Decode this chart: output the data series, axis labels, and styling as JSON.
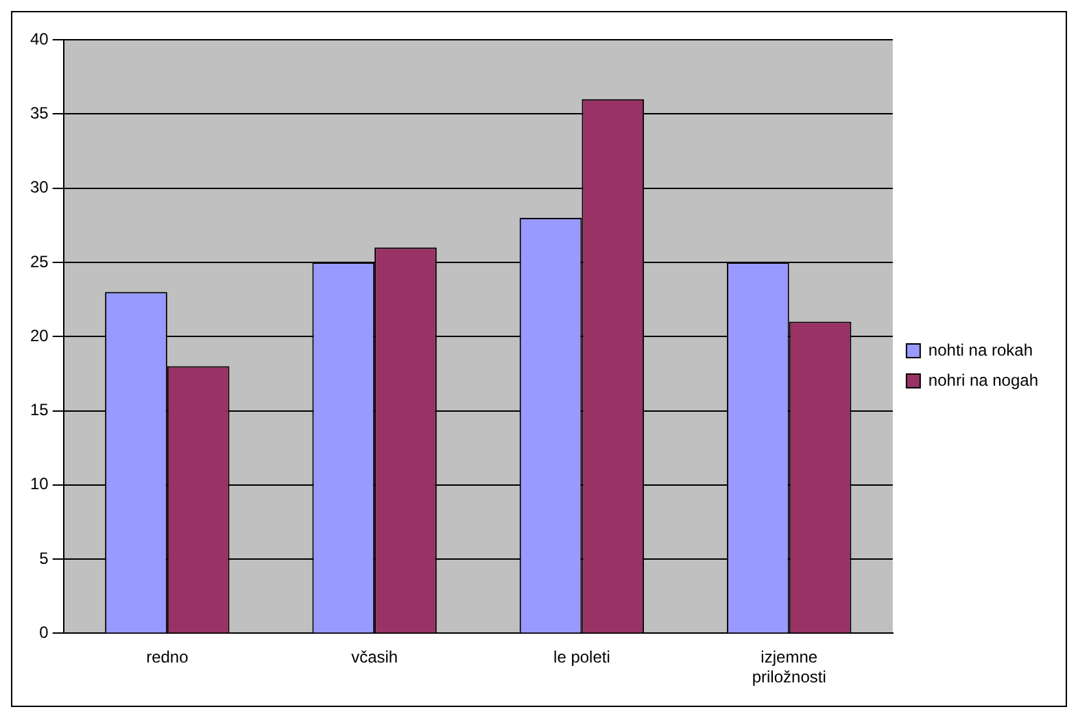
{
  "chart_data": {
    "type": "bar",
    "categories": [
      "redno",
      "včasih",
      "le poleti",
      "izjemne priložnosti"
    ],
    "series": [
      {
        "name": "nohti na rokah",
        "color": "#9999ff",
        "values": [
          23,
          25,
          28,
          25
        ]
      },
      {
        "name": "nohri na nogah",
        "color": "#993366",
        "values": [
          18,
          26,
          36,
          21
        ]
      }
    ],
    "ylim": [
      0,
      40
    ],
    "yticks": [
      0,
      5,
      10,
      15,
      20,
      25,
      30,
      35,
      40
    ],
    "grid": "y",
    "legend": "right"
  }
}
